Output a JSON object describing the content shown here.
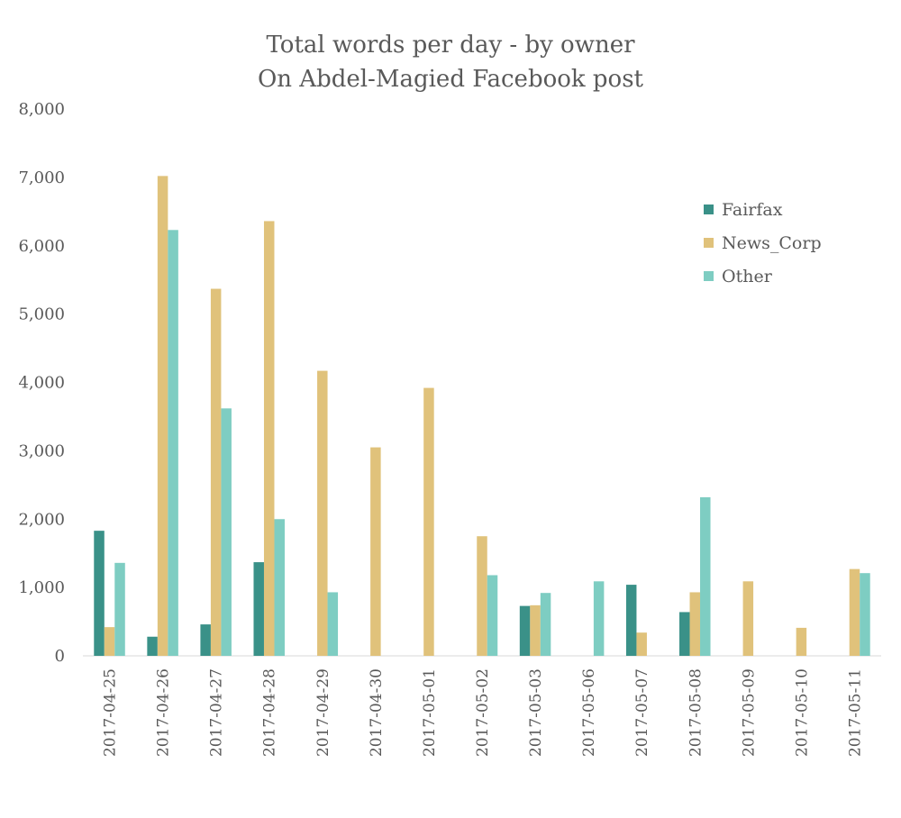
{
  "chart_data": {
    "type": "bar",
    "title": "Total words per day - by owner",
    "subtitle": "On Abdel-Magied Facebook post",
    "xlabel": "",
    "ylabel": "",
    "ylim": [
      0,
      8000
    ],
    "yticks": [
      0,
      1000,
      2000,
      3000,
      4000,
      5000,
      6000,
      7000,
      8000
    ],
    "ytick_labels": [
      "0",
      "1,000",
      "2,000",
      "3,000",
      "4,000",
      "5,000",
      "6,000",
      "7,000",
      "8,000"
    ],
    "grid": false,
    "legend_position": "top-right",
    "categories": [
      "2017-04-25",
      "2017-04-26",
      "2017-04-27",
      "2017-04-28",
      "2017-04-29",
      "2017-04-30",
      "2017-05-01",
      "2017-05-02",
      "2017-05-03",
      "2017-05-06",
      "2017-05-07",
      "2017-05-08",
      "2017-05-09",
      "2017-05-10",
      "2017-05-11"
    ],
    "series": [
      {
        "name": "Fairfax",
        "color": "#3a9188",
        "values": [
          1830,
          280,
          460,
          1370,
          0,
          0,
          0,
          0,
          730,
          0,
          1040,
          640,
          0,
          0,
          0
        ]
      },
      {
        "name": "News_Corp",
        "color": "#e0c27b",
        "values": [
          420,
          7020,
          5370,
          6360,
          4170,
          3050,
          3920,
          1750,
          740,
          0,
          340,
          930,
          1090,
          410,
          1270
        ]
      },
      {
        "name": "Other",
        "color": "#7ecdc2",
        "values": [
          1360,
          6230,
          3620,
          2000,
          930,
          0,
          0,
          1180,
          920,
          1090,
          0,
          2320,
          0,
          0,
          1210
        ]
      }
    ]
  }
}
